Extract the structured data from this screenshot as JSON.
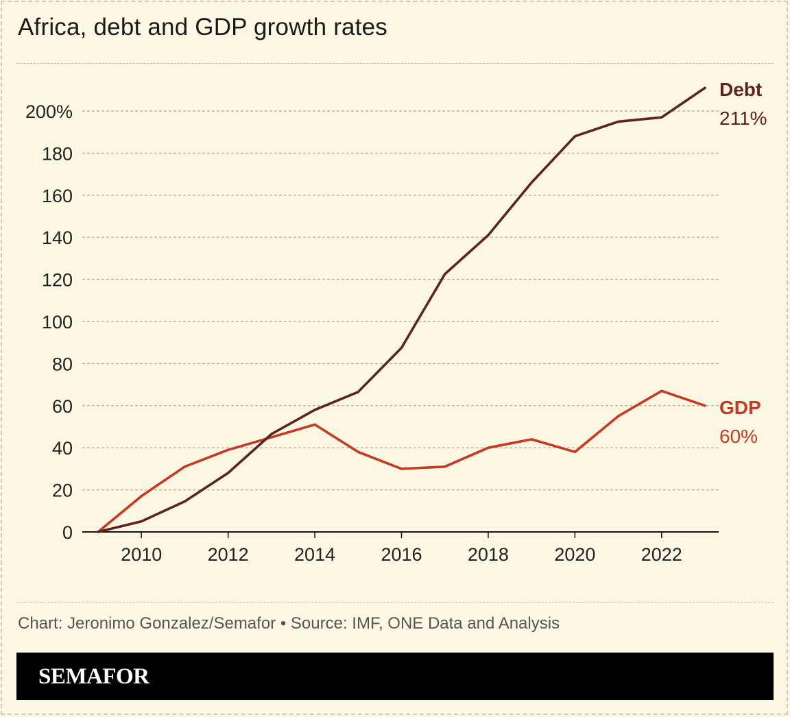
{
  "title": "Africa, debt and GDP growth rates",
  "source": "Chart: Jeronimo Gonzalez/Semafor • Source: IMF, ONE Data and Analysis",
  "brand": "SEMAFOR",
  "colors": {
    "background": "#fbf7e3",
    "debt": "#5c2323",
    "gdp": "#c43a25",
    "grid": "#b8b4a0",
    "axis": "#222222"
  },
  "chart_data": {
    "type": "line",
    "title": "Africa, debt and GDP growth rates",
    "xlabel": "",
    "ylabel": "",
    "x": [
      2009,
      2010,
      2011,
      2012,
      2013,
      2014,
      2015,
      2016,
      2017,
      2018,
      2019,
      2020,
      2021,
      2022,
      2023
    ],
    "x_ticks": [
      "2010",
      "2012",
      "2014",
      "2016",
      "2018",
      "2020",
      "2022"
    ],
    "x_tick_values": [
      2010,
      2012,
      2014,
      2016,
      2018,
      2020,
      2022
    ],
    "xlim": [
      2009,
      2023
    ],
    "y_ticks": [
      "0",
      "20",
      "40",
      "60",
      "80",
      "100",
      "120",
      "140",
      "160",
      "180",
      "200%"
    ],
    "y_tick_values": [
      0,
      20,
      40,
      60,
      80,
      100,
      120,
      140,
      160,
      180,
      200
    ],
    "ylim": [
      0,
      211
    ],
    "grid": true,
    "legend": "direct labels at line ends",
    "series": [
      {
        "name": "Debt",
        "end_label": "211%",
        "values": [
          0,
          5,
          14.5,
          28,
          46.5,
          58,
          66.5,
          87.5,
          122.5,
          141,
          166,
          188,
          195,
          197,
          211
        ]
      },
      {
        "name": "GDP",
        "end_label": "60%",
        "values": [
          0,
          17,
          31,
          39,
          45,
          51,
          38,
          30,
          31,
          40,
          44,
          38,
          55,
          67,
          60
        ]
      }
    ]
  }
}
